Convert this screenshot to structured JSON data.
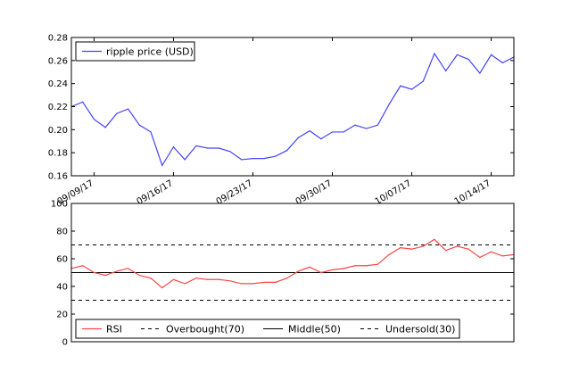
{
  "chart_data": [
    {
      "type": "line",
      "title": "",
      "xlabel": "",
      "ylabel": "",
      "ylim": [
        0.16,
        0.28
      ],
      "yticks": [
        "0.16",
        "0.18",
        "0.20",
        "0.22",
        "0.24",
        "0.26",
        "0.28"
      ],
      "xticks": [
        "09/09/17",
        "09/16/17",
        "09/23/17",
        "09/30/17",
        "10/07/17",
        "10/14/17"
      ],
      "x_start": "09/07/17",
      "grid": false,
      "legend_position": "upper left",
      "series": [
        {
          "name": "ripple price (USD)",
          "color": "#4444ff",
          "values": [
            0.22,
            0.224,
            0.209,
            0.202,
            0.214,
            0.218,
            0.204,
            0.198,
            0.169,
            0.185,
            0.174,
            0.186,
            0.184,
            0.184,
            0.181,
            0.174,
            0.175,
            0.175,
            0.177,
            0.182,
            0.193,
            0.199,
            0.192,
            0.198,
            0.198,
            0.204,
            0.201,
            0.204,
            0.222,
            0.238,
            0.235,
            0.242,
            0.266,
            0.251,
            0.265,
            0.261,
            0.249,
            0.265,
            0.258,
            0.263
          ]
        }
      ]
    },
    {
      "type": "line",
      "title": "",
      "xlabel": "",
      "ylabel": "",
      "ylim": [
        0,
        100
      ],
      "yticks": [
        "0",
        "20",
        "40",
        "60",
        "80",
        "100"
      ],
      "grid": false,
      "legend_position": "lower center",
      "series": [
        {
          "name": "RSI",
          "color": "#ff4444",
          "values": [
            53,
            55,
            50,
            48,
            51,
            53,
            48,
            46,
            39,
            45,
            42,
            46,
            45,
            45,
            44,
            42,
            42,
            43,
            43,
            46,
            51,
            54,
            50,
            52,
            53,
            55,
            55,
            56,
            63,
            68,
            67,
            69,
            74,
            66,
            69,
            67,
            61,
            65,
            62,
            63
          ]
        },
        {
          "name": "Overbought(70)",
          "color": "#000000",
          "style": "dashed",
          "level": 70
        },
        {
          "name": "Middle(50)",
          "color": "#000000",
          "style": "solid",
          "level": 50
        },
        {
          "name": "Undersold(30)",
          "color": "#000000",
          "style": "dashed",
          "level": 30
        }
      ]
    }
  ]
}
